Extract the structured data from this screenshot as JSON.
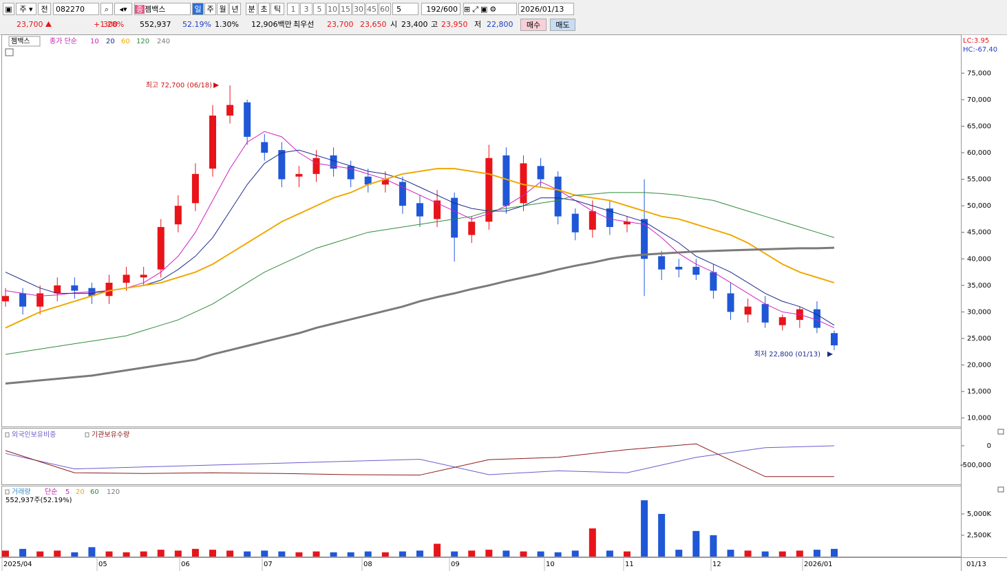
{
  "toolbar": {
    "market": "주",
    "type": "전",
    "code": "082270",
    "name": "젬백스",
    "periods": [
      "일",
      "주",
      "월",
      "년",
      "분",
      "초",
      "틱"
    ],
    "minutes": [
      "1",
      "3",
      "5",
      "10",
      "15",
      "30",
      "45",
      "60"
    ],
    "custom": "5",
    "count": "192/600",
    "date": "2026/01/13"
  },
  "quote": {
    "price": "23,700",
    "change": "300",
    "rate": "+1.28%",
    "volume": "552,937",
    "vol_ratio": "52.19%",
    "turnover": "1.30%",
    "amount": "12,906백만",
    "best_label": "최우선",
    "ask": "23,700",
    "bid": "23,650",
    "open_label": "시",
    "open": "23,400",
    "high_label": "고",
    "high": "23,950",
    "low_label": "저",
    "low": "22,800",
    "buy": "매수",
    "sell": "매도"
  },
  "price_chart": {
    "type": "candlestick",
    "name": "젬백스",
    "legend_label": "종가 단순",
    "lc": "LC:3.95",
    "hc": "HC:-67.40",
    "up_color": "#e8141a",
    "down_color": "#1f57d6",
    "open": [
      32000,
      33500,
      31000,
      33500,
      35000,
      34500,
      33000,
      35500,
      36500,
      38000,
      46500,
      50500,
      57000,
      67000,
      69500,
      62000,
      60500,
      55500,
      56000,
      59500,
      57500,
      55500,
      54000,
      54500,
      50500,
      47500,
      51500,
      44500,
      47000,
      59500,
      50500,
      57500,
      55500,
      48500,
      45500,
      49500,
      46500,
      47500,
      40500,
      38500,
      38500,
      37500,
      33500,
      29500,
      31500,
      27500,
      28500,
      30500,
      26000
    ],
    "high": [
      34500,
      34500,
      35000,
      36500,
      36500,
      35500,
      37000,
      38500,
      38500,
      47500,
      52000,
      58000,
      69000,
      72700,
      70000,
      63500,
      62000,
      57500,
      60500,
      61000,
      58500,
      57000,
      56500,
      55500,
      52000,
      53000,
      52500,
      48000,
      61500,
      61000,
      59500,
      59000,
      56500,
      49500,
      51000,
      51000,
      48000,
      55000,
      41500,
      40000,
      40000,
      39000,
      35500,
      32500,
      33000,
      29500,
      31000,
      32000,
      26500
    ],
    "low": [
      31000,
      29500,
      29500,
      32000,
      32500,
      31500,
      31500,
      34000,
      35000,
      36500,
      45000,
      49000,
      55500,
      65500,
      61500,
      58500,
      53500,
      53500,
      54500,
      55500,
      53500,
      52500,
      52500,
      48500,
      46000,
      46000,
      39500,
      43000,
      45500,
      48500,
      49000,
      53500,
      46500,
      43500,
      44000,
      44500,
      45000,
      33000,
      36000,
      36500,
      36000,
      32500,
      28500,
      28000,
      27000,
      26500,
      27000,
      26000,
      22800
    ],
    "close": [
      33000,
      31000,
      33500,
      35000,
      34000,
      33000,
      35500,
      37000,
      37000,
      46000,
      50000,
      56000,
      67000,
      69000,
      63000,
      60000,
      55000,
      56000,
      59000,
      57000,
      55000,
      54000,
      55000,
      50000,
      48000,
      51000,
      44000,
      47000,
      59000,
      50000,
      58000,
      55000,
      48000,
      45000,
      49000,
      46000,
      47000,
      40000,
      38000,
      38000,
      37000,
      34000,
      30000,
      31000,
      28000,
      29000,
      30500,
      27000,
      23700
    ],
    "ma": [
      {
        "name": "10",
        "color": "#d020c0",
        "width": 1,
        "values": [
          34000,
          33500,
          33000,
          33200,
          33600,
          33800,
          34000,
          34500,
          35500,
          37500,
          40500,
          45000,
          51000,
          57000,
          62000,
          64000,
          63000,
          60000,
          58000,
          57500,
          57000,
          56000,
          55000,
          53500,
          52000,
          50500,
          49000,
          47500,
          48500,
          50000,
          52000,
          54500,
          53000,
          51000,
          49000,
          47500,
          47000,
          46500,
          44000,
          41000,
          39000,
          37500,
          35500,
          33500,
          31500,
          30000,
          29500,
          28500,
          27000
        ]
      },
      {
        "name": "20",
        "color": "#1c2a8a",
        "width": 1,
        "values": [
          37500,
          36000,
          34500,
          33500,
          33500,
          33500,
          34000,
          34500,
          35000,
          36000,
          38000,
          40500,
          44000,
          49000,
          54000,
          58000,
          60000,
          60500,
          59500,
          58500,
          57500,
          56500,
          56000,
          55000,
          53500,
          52000,
          50500,
          49500,
          49000,
          49000,
          50000,
          51500,
          51500,
          51000,
          50000,
          49000,
          48000,
          47000,
          45000,
          43000,
          40500,
          39000,
          37500,
          35500,
          33500,
          32000,
          31000,
          29500,
          27500
        ]
      },
      {
        "name": "60",
        "color": "#f0a800",
        "width": 2,
        "values": [
          27000,
          28500,
          30000,
          31000,
          32000,
          33000,
          34000,
          34500,
          35000,
          35500,
          36500,
          37500,
          39000,
          41000,
          43000,
          45000,
          47000,
          48500,
          50000,
          51500,
          52500,
          54000,
          55000,
          56000,
          56500,
          57000,
          57000,
          56500,
          56000,
          55000,
          54000,
          53500,
          53000,
          52000,
          51500,
          51000,
          50000,
          49000,
          48000,
          47500,
          46500,
          45500,
          44500,
          43000,
          41000,
          39000,
          37500,
          36500,
          35500
        ]
      },
      {
        "name": "120",
        "color": "#2e8b3a",
        "width": 1,
        "values": [
          22000,
          22500,
          23000,
          23500,
          24000,
          24500,
          25000,
          25500,
          26500,
          27500,
          28500,
          30000,
          31500,
          33500,
          35500,
          37500,
          39000,
          40500,
          42000,
          43000,
          44000,
          45000,
          45500,
          46000,
          46500,
          47000,
          47500,
          48000,
          49000,
          49500,
          50000,
          50500,
          51000,
          52000,
          52200,
          52500,
          52500,
          52500,
          52300,
          52000,
          51500,
          51000,
          50000,
          49000,
          48000,
          47000,
          46000,
          45000,
          44000
        ]
      },
      {
        "name": "240",
        "color": "#7a7a7a",
        "width": 3,
        "values": [
          16500,
          16800,
          17100,
          17400,
          17700,
          18000,
          18500,
          19000,
          19500,
          20000,
          20500,
          21000,
          22000,
          22800,
          23600,
          24400,
          25200,
          26000,
          27000,
          27800,
          28600,
          29400,
          30200,
          31000,
          32000,
          32800,
          33500,
          34300,
          35000,
          35800,
          36500,
          37200,
          38000,
          38700,
          39300,
          40000,
          40500,
          40800,
          41000,
          41200,
          41400,
          41500,
          41600,
          41700,
          41800,
          41900,
          42000,
          42000,
          42100
        ]
      }
    ],
    "ylim": [
      8400,
      82300
    ],
    "yticks": [
      {
        "value": 10000,
        "label": "10,000"
      },
      {
        "value": 15000,
        "label": "15,000"
      },
      {
        "value": 20000,
        "label": "20,000"
      },
      {
        "value": 25000,
        "label": "25,000"
      },
      {
        "value": 30000,
        "label": "30,000"
      },
      {
        "value": 35000,
        "label": "35,000"
      },
      {
        "value": 40000,
        "label": "40,000"
      },
      {
        "value": 45000,
        "label": "45,000"
      },
      {
        "value": 50000,
        "label": "50,000"
      },
      {
        "value": 55000,
        "label": "55,000"
      },
      {
        "value": 60000,
        "label": "60,000"
      },
      {
        "value": 65000,
        "label": "65,000"
      },
      {
        "value": 70000,
        "label": "70,000"
      },
      {
        "value": 75000,
        "label": "75,000"
      }
    ],
    "max_label": "최고 72,700 (06/18)",
    "min_label": "최저 22,800 (01/13)"
  },
  "holding_chart": {
    "type": "line",
    "series": [
      {
        "name": "외국인보유비중",
        "color": "#6a5acd",
        "values": [
          -200000,
          -600000,
          -550000,
          -500000,
          -450000,
          -400000,
          -350000,
          -750000,
          -650000,
          -700000,
          -300000,
          -50000,
          0
        ]
      },
      {
        "name": "기관보유수량",
        "color": "#8b1a1a",
        "values": [
          -125000,
          -700000,
          -720000,
          -700000,
          -720000,
          -750000,
          -760000,
          -360000,
          -300000,
          -100000,
          50000,
          -800000,
          -800000
        ]
      }
    ],
    "ylim": [
      -1018000,
      464000
    ],
    "yticks": [
      0,
      {
        "value": -500000,
        "label": "-500,000"
      }
    ]
  },
  "volume_chart": {
    "type": "bar",
    "title": "거래량",
    "legend_label": "단순",
    "ma_names": [
      "5",
      "20",
      "60",
      "120"
    ],
    "ma_colors": [
      "#d020c0",
      "#f0a800",
      "#2e8b3a",
      "#7a7a7a"
    ],
    "summary": "552,937주(52.19%)",
    "values": [
      700,
      900,
      600,
      700,
      500,
      1100,
      600,
      500,
      600,
      800,
      700,
      900,
      800,
      700,
      600,
      700,
      600,
      500,
      600,
      500,
      500,
      600,
      500,
      600,
      700,
      1500,
      600,
      700,
      800,
      700,
      600,
      600,
      500,
      700,
      3300,
      700,
      600,
      6600,
      5000,
      800,
      3000,
      2500,
      800,
      700,
      600,
      600,
      700,
      800,
      900
    ],
    "ylim": [
      -80,
      8230
    ],
    "yticks": [
      {
        "value": 5000,
        "label": "5,000K"
      },
      {
        "value": 2500,
        "label": "2,500K"
      }
    ]
  },
  "x_axis": {
    "labels": [
      "2025/04",
      "05",
      "06",
      "07",
      "08",
      "09",
      "10",
      "11",
      "12",
      "2026/01"
    ],
    "end_label": "01/13"
  }
}
